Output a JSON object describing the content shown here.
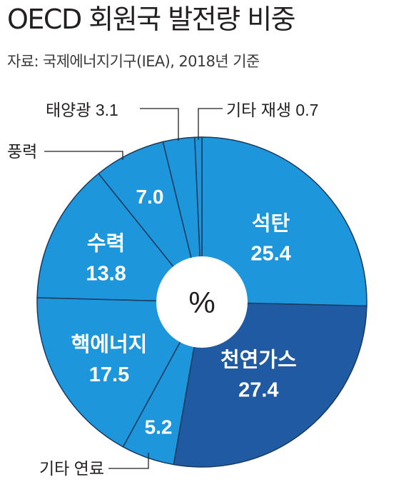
{
  "title": "OECD 회원국 발전량 비중",
  "source": "자료: 국제에너지기구(IEA), 2018년 기준",
  "chart_data": {
    "type": "pie",
    "center_label": "%",
    "colors": {
      "primary": "#1e96dc",
      "highlight": "#1f5aa3",
      "divider": "#1b3a5c"
    },
    "slices": [
      {
        "name": "석탄",
        "value": 25.4,
        "value_label": "25.4"
      },
      {
        "name": "천연가스",
        "value": 27.4,
        "value_label": "27.4"
      },
      {
        "name": "기타 연료",
        "value": 5.2,
        "value_label": "5.2"
      },
      {
        "name": "핵에너지",
        "value": 17.5,
        "value_label": "17.5"
      },
      {
        "name": "수력",
        "value": 13.8,
        "value_label": "13.8"
      },
      {
        "name": "풍력",
        "value": 7.0,
        "value_label": "7.0"
      },
      {
        "name": "태양광",
        "value": 3.1,
        "value_label": "3.1"
      },
      {
        "name": "기타 재생",
        "value": 0.7,
        "value_label": "0.7"
      }
    ]
  }
}
